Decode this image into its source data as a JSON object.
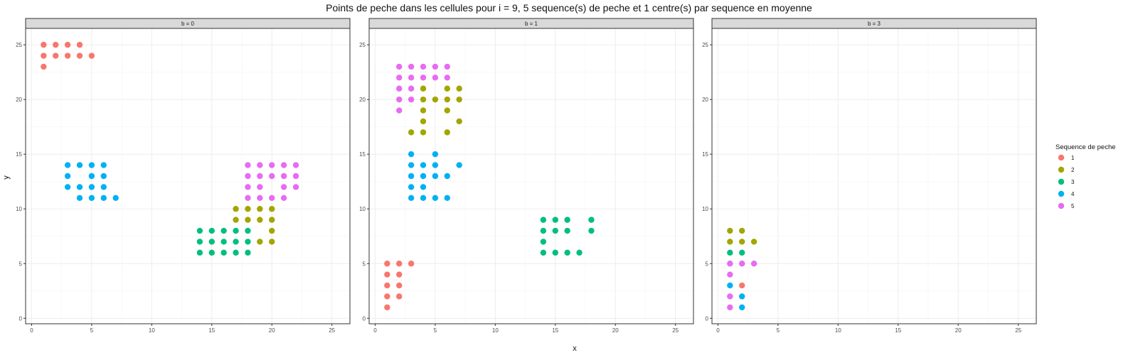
{
  "chart_data": {
    "type": "scatter",
    "title": "Points de peche dans les cellules pour i = 9, 5 sequence(s) de peche et 1 centre(s) par sequence en moyenne",
    "xlabel": "x",
    "ylabel": "y",
    "xlim": [
      -0.5,
      26.5
    ],
    "ylim": [
      -0.5,
      26.5
    ],
    "xticks": [
      0,
      5,
      10,
      15,
      20,
      25
    ],
    "yticks": [
      0,
      5,
      10,
      15,
      20,
      25
    ],
    "grid": true,
    "legend": {
      "title": "Sequence de peche",
      "position": "right",
      "entries": [
        {
          "label": "1",
          "color": "#F8766D"
        },
        {
          "label": "2",
          "color": "#A3A500"
        },
        {
          "label": "3",
          "color": "#00BF7D"
        },
        {
          "label": "4",
          "color": "#00B0F6"
        },
        {
          "label": "5",
          "color": "#E76BF3"
        }
      ]
    },
    "facets": [
      {
        "label": "b = 0",
        "series": [
          {
            "name": "1",
            "points": [
              [
                1,
                25
              ],
              [
                2,
                25
              ],
              [
                3,
                25
              ],
              [
                4,
                25
              ],
              [
                1,
                24
              ],
              [
                2,
                24
              ],
              [
                3,
                24
              ],
              [
                4,
                24
              ],
              [
                5,
                24
              ],
              [
                1,
                23
              ]
            ]
          },
          {
            "name": "2",
            "points": [
              [
                17,
                10
              ],
              [
                18,
                10
              ],
              [
                19,
                10
              ],
              [
                20,
                10
              ],
              [
                17,
                9
              ],
              [
                18,
                9
              ],
              [
                19,
                9
              ],
              [
                20,
                9
              ],
              [
                20,
                8
              ],
              [
                19,
                7
              ],
              [
                20,
                7
              ]
            ]
          },
          {
            "name": "3",
            "points": [
              [
                14,
                8
              ],
              [
                15,
                8
              ],
              [
                16,
                8
              ],
              [
                17,
                8
              ],
              [
                18,
                8
              ],
              [
                14,
                7
              ],
              [
                15,
                7
              ],
              [
                16,
                7
              ],
              [
                17,
                7
              ],
              [
                18,
                7
              ],
              [
                14,
                6
              ],
              [
                15,
                6
              ],
              [
                16,
                6
              ],
              [
                17,
                6
              ],
              [
                18,
                6
              ]
            ]
          },
          {
            "name": "4",
            "points": [
              [
                3,
                14
              ],
              [
                4,
                14
              ],
              [
                5,
                14
              ],
              [
                6,
                14
              ],
              [
                3,
                13
              ],
              [
                5,
                13
              ],
              [
                6,
                13
              ],
              [
                3,
                12
              ],
              [
                4,
                12
              ],
              [
                5,
                12
              ],
              [
                6,
                12
              ],
              [
                4,
                11
              ],
              [
                5,
                11
              ],
              [
                6,
                11
              ],
              [
                7,
                11
              ]
            ]
          },
          {
            "name": "5",
            "points": [
              [
                18,
                14
              ],
              [
                19,
                14
              ],
              [
                20,
                14
              ],
              [
                21,
                14
              ],
              [
                22,
                14
              ],
              [
                18,
                13
              ],
              [
                19,
                13
              ],
              [
                20,
                13
              ],
              [
                21,
                13
              ],
              [
                22,
                13
              ],
              [
                18,
                12
              ],
              [
                19,
                12
              ],
              [
                21,
                12
              ],
              [
                22,
                12
              ],
              [
                18,
                11
              ],
              [
                19,
                11
              ],
              [
                20,
                11
              ],
              [
                21,
                11
              ]
            ]
          }
        ]
      },
      {
        "label": "b = 1",
        "series": [
          {
            "name": "1",
            "points": [
              [
                1,
                5
              ],
              [
                2,
                5
              ],
              [
                3,
                5
              ],
              [
                1,
                4
              ],
              [
                2,
                4
              ],
              [
                1,
                3
              ],
              [
                2,
                3
              ],
              [
                1,
                2
              ],
              [
                2,
                2
              ],
              [
                1,
                1
              ]
            ]
          },
          {
            "name": "2",
            "points": [
              [
                4,
                21
              ],
              [
                6,
                21
              ],
              [
                7,
                21
              ],
              [
                4,
                20
              ],
              [
                5,
                20
              ],
              [
                6,
                20
              ],
              [
                7,
                20
              ],
              [
                4,
                19
              ],
              [
                6,
                19
              ],
              [
                4,
                18
              ],
              [
                7,
                18
              ],
              [
                3,
                17
              ],
              [
                4,
                17
              ],
              [
                6,
                17
              ]
            ]
          },
          {
            "name": "3",
            "points": [
              [
                14,
                9
              ],
              [
                15,
                9
              ],
              [
                16,
                9
              ],
              [
                18,
                9
              ],
              [
                14,
                8
              ],
              [
                15,
                8
              ],
              [
                16,
                8
              ],
              [
                18,
                8
              ],
              [
                14,
                7
              ],
              [
                14,
                6
              ],
              [
                15,
                6
              ],
              [
                16,
                6
              ],
              [
                17,
                6
              ]
            ]
          },
          {
            "name": "4",
            "points": [
              [
                3,
                15
              ],
              [
                5,
                15
              ],
              [
                3,
                14
              ],
              [
                4,
                14
              ],
              [
                5,
                14
              ],
              [
                7,
                14
              ],
              [
                3,
                13
              ],
              [
                4,
                13
              ],
              [
                5,
                13
              ],
              [
                6,
                13
              ],
              [
                3,
                12
              ],
              [
                4,
                12
              ],
              [
                3,
                11
              ],
              [
                4,
                11
              ],
              [
                5,
                11
              ],
              [
                6,
                11
              ]
            ]
          },
          {
            "name": "5",
            "points": [
              [
                2,
                23
              ],
              [
                3,
                23
              ],
              [
                4,
                23
              ],
              [
                5,
                23
              ],
              [
                6,
                23
              ],
              [
                2,
                22
              ],
              [
                3,
                22
              ],
              [
                4,
                22
              ],
              [
                5,
                22
              ],
              [
                6,
                22
              ],
              [
                2,
                21
              ],
              [
                3,
                21
              ],
              [
                2,
                20
              ],
              [
                3,
                20
              ],
              [
                2,
                19
              ]
            ]
          }
        ]
      },
      {
        "label": "b = 3",
        "series": [
          {
            "name": "1",
            "points": [
              [
                2,
                3
              ]
            ]
          },
          {
            "name": "2",
            "points": [
              [
                1,
                8
              ],
              [
                2,
                8
              ],
              [
                1,
                7
              ],
              [
                2,
                7
              ],
              [
                3,
                7
              ]
            ]
          },
          {
            "name": "3",
            "points": [
              [
                1,
                6
              ],
              [
                2,
                6
              ]
            ]
          },
          {
            "name": "4",
            "points": [
              [
                1,
                3
              ],
              [
                2,
                2
              ],
              [
                2,
                1
              ]
            ]
          },
          {
            "name": "5",
            "points": [
              [
                1,
                5
              ],
              [
                2,
                5
              ],
              [
                3,
                5
              ],
              [
                1,
                4
              ],
              [
                1,
                2
              ],
              [
                1,
                1
              ]
            ]
          }
        ]
      }
    ]
  }
}
